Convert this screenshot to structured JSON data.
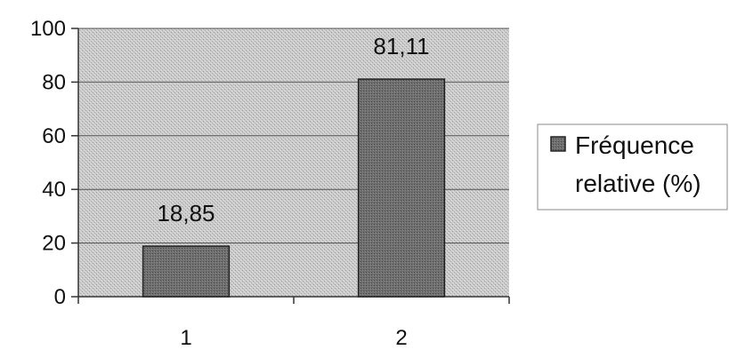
{
  "chart_data": {
    "type": "bar",
    "categories": [
      "1",
      "2"
    ],
    "series": [
      {
        "name": "Fréquence relative (%)",
        "values": [
          18.85,
          81.11
        ]
      }
    ],
    "data_labels": [
      "18,85",
      "81,11"
    ],
    "y_ticks": [
      "0",
      "20",
      "40",
      "60",
      "80",
      "100"
    ],
    "ylim": [
      0,
      100
    ],
    "grid": true,
    "legend": {
      "position": "right",
      "lines": [
        "Fréquence",
        "relative (%)"
      ]
    },
    "colors": {
      "plot_background": "#c8c8c8",
      "bar_fill": "#6e6e6e",
      "bar_stroke": "#222222",
      "gridline": "#555555"
    }
  }
}
